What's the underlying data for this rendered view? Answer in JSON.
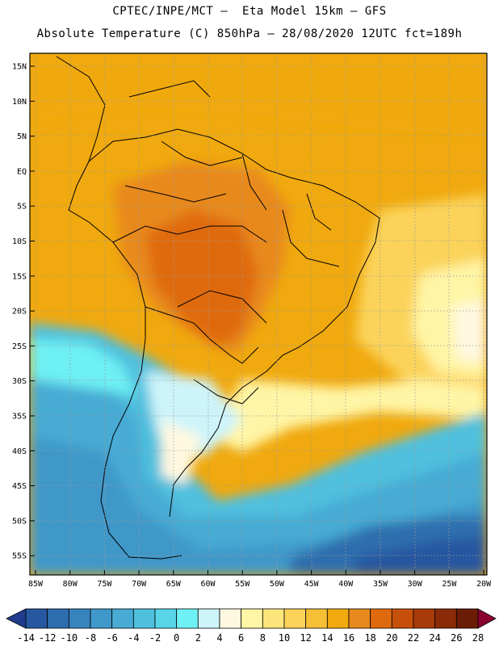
{
  "header": {
    "line1": "CPTEC/INPE/MCT –  Eta Model 15km – GFS",
    "line2": "Absolute Temperature (C) 850hPa – 28/08/2020 12UTC fct=189h"
  },
  "map": {
    "lat_labels": [
      "15N",
      "10N",
      "5N",
      "EQ",
      "5S",
      "10S",
      "15S",
      "20S",
      "25S",
      "30S",
      "35S",
      "40S",
      "45S",
      "50S",
      "55S"
    ],
    "lon_labels": [
      "85W",
      "80W",
      "75W",
      "70W",
      "65W",
      "60W",
      "55W",
      "50W",
      "45W",
      "40W",
      "35W",
      "30W",
      "25W",
      "20W"
    ]
  },
  "colorbar": {
    "labels": [
      "-14",
      "-12",
      "-10",
      "-8",
      "-6",
      "-4",
      "-2",
      "0",
      "2",
      "4",
      "6",
      "8",
      "10",
      "12",
      "14",
      "16",
      "18",
      "20",
      "22",
      "24",
      "26",
      "28"
    ],
    "colors": [
      "#1f3d8c",
      "#2757a0",
      "#2e6eae",
      "#3784bd",
      "#3f98c9",
      "#47abd4",
      "#4fc0de",
      "#58d6e8",
      "#6ef0f4",
      "#cdf4fa",
      "#fff8e0",
      "#fff5a6",
      "#fde57c",
      "#fbd35a",
      "#f5bf36",
      "#f0a90e",
      "#e8891e",
      "#df6a0e",
      "#c6500a",
      "#a83b08",
      "#8a2a06",
      "#6b1c05",
      "#8a0030"
    ]
  }
}
